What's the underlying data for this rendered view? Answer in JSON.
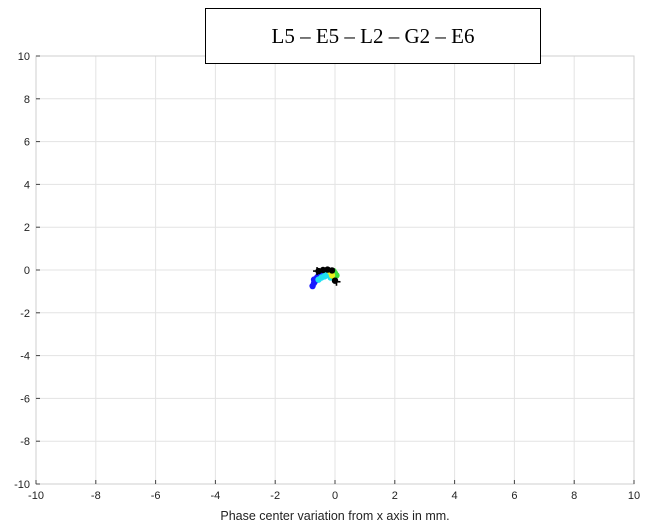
{
  "chart_data": {
    "type": "scatter",
    "title": "L5 – E5 – L2 – G2 – E6",
    "xlabel": "Phase center variation from x axis in mm.",
    "ylabel": "",
    "xlim": [
      -10,
      10
    ],
    "ylim": [
      -10,
      10
    ],
    "xticks": [
      -10,
      -8,
      -6,
      -4,
      -2,
      0,
      2,
      4,
      6,
      8,
      10
    ],
    "yticks": [
      -10,
      -8,
      -6,
      -4,
      -2,
      0,
      2,
      4,
      6,
      8,
      10
    ],
    "grid": true,
    "colors": {
      "blue": "#1a1aff",
      "cyan": "#20e0f0",
      "green": "#40e040",
      "yellow": "#e8f020",
      "black": "#000000",
      "grid": "#e3e3e3"
    },
    "series": [
      {
        "color": "blue",
        "points": [
          [
            -0.75,
            -0.75
          ],
          [
            -0.7,
            -0.6
          ],
          [
            -0.65,
            -0.5
          ],
          [
            -0.7,
            -0.45
          ],
          [
            -0.6,
            -0.35
          ],
          [
            -0.55,
            -0.25
          ],
          [
            -0.5,
            -0.15
          ],
          [
            -0.45,
            -0.1
          ]
        ]
      },
      {
        "color": "cyan",
        "points": [
          [
            -0.55,
            -0.45
          ],
          [
            -0.45,
            -0.35
          ],
          [
            -0.35,
            -0.3
          ],
          [
            -0.3,
            -0.2
          ],
          [
            -0.25,
            -0.15
          ],
          [
            -0.35,
            -0.05
          ],
          [
            -0.2,
            -0.25
          ],
          [
            -0.15,
            -0.35
          ]
        ]
      },
      {
        "color": "green",
        "points": [
          [
            -0.1,
            -0.2
          ],
          [
            -0.05,
            -0.05
          ],
          [
            0.0,
            -0.15
          ],
          [
            -0.05,
            -0.3
          ],
          [
            0.05,
            -0.25
          ]
        ]
      },
      {
        "color": "yellow",
        "points": [
          [
            -0.15,
            -0.1
          ],
          [
            -0.1,
            -0.25
          ]
        ]
      },
      {
        "color": "black",
        "points": [
          [
            -0.55,
            -0.05
          ],
          [
            -0.4,
            0.0
          ],
          [
            -0.25,
            0.02
          ],
          [
            -0.1,
            -0.02
          ],
          [
            0.0,
            -0.5
          ]
        ]
      }
    ],
    "markers": [
      {
        "symbol": "+",
        "x": -0.6,
        "y": -0.05
      },
      {
        "symbol": "+",
        "x": 0.05,
        "y": -0.55
      }
    ]
  }
}
